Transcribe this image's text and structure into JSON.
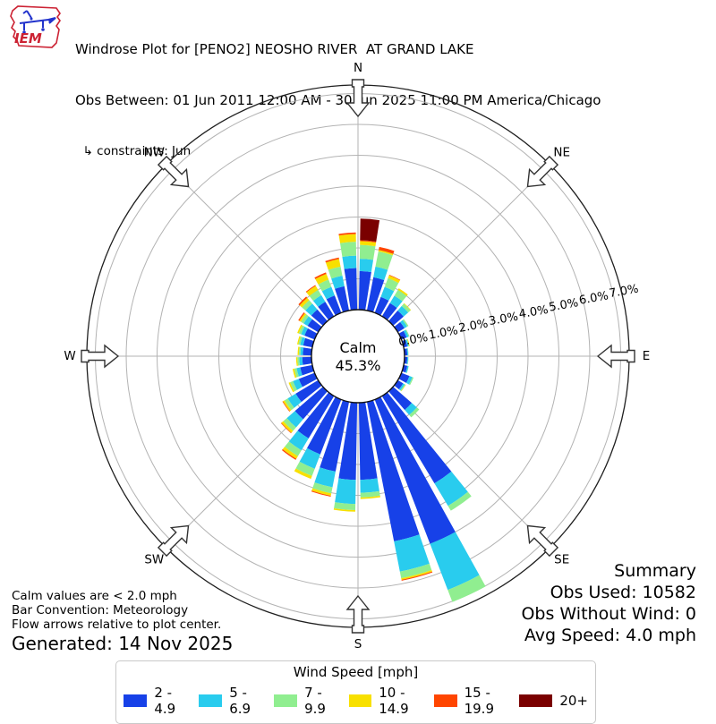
{
  "header": {
    "title": "Windrose Plot for [PENO2] NEOSHO RIVER  AT GRAND LAKE",
    "subtitle": "Obs Between: 01 Jun 2011 12:00 AM - 30 Jun 2025 11:00 PM America/Chicago",
    "constraints": "  ↳ constraints: Jun",
    "logo_text": "IEM"
  },
  "chart_data": {
    "type": "windrose-stacked-polar-bar",
    "title": "Windrose Plot for [PENO2] NEOSHO RIVER  AT GRAND LAKE",
    "calm_label": "Calm",
    "calm_value": "45.3%",
    "compass_labels": [
      "N",
      "NE",
      "E",
      "SE",
      "S",
      "SW",
      "W",
      "NW"
    ],
    "ring_labels": [
      "0.0%",
      "1.0%",
      "2.0%",
      "3.0%",
      "4.0%",
      "5.0%",
      "6.0%",
      "7.0%"
    ],
    "ring_step_pct": 1.0,
    "ring_max_pct": 7.0,
    "bar_width_deg": 8,
    "directions_deg": [
      5,
      15,
      25,
      35,
      45,
      55,
      65,
      75,
      85,
      95,
      105,
      115,
      125,
      135,
      145,
      155,
      165,
      175,
      185,
      195,
      205,
      215,
      225,
      235,
      245,
      255,
      265,
      275,
      285,
      295,
      305,
      315,
      325,
      335,
      345,
      355
    ],
    "series": [
      {
        "name": "2 - 4.9",
        "color": "#1741e8",
        "values": [
          1.25,
          1.1,
          0.55,
          0.5,
          0.45,
          0.25,
          0.18,
          0.12,
          0.09,
          0.09,
          0.12,
          0.28,
          0.2,
          0.8,
          3.3,
          5.0,
          4.6,
          2.5,
          2.5,
          2.3,
          1.9,
          1.6,
          1.2,
          0.85,
          0.55,
          0.4,
          0.3,
          0.28,
          0.3,
          0.35,
          0.4,
          0.5,
          0.55,
          0.6,
          0.8,
          1.35
        ]
      },
      {
        "name": "5 - 6.9",
        "color": "#29ccee",
        "values": [
          0.4,
          0.35,
          0.35,
          0.28,
          0.2,
          0.1,
          0.07,
          0.04,
          0.03,
          0.03,
          0.04,
          0.1,
          0.06,
          0.22,
          0.85,
          1.6,
          1.0,
          0.42,
          0.78,
          0.52,
          0.5,
          0.45,
          0.35,
          0.3,
          0.2,
          0.12,
          0.1,
          0.08,
          0.1,
          0.12,
          0.15,
          0.25,
          0.25,
          0.3,
          0.35,
          0.4
        ]
      },
      {
        "name": "7 - 9.9",
        "color": "#90ee90",
        "values": [
          0.45,
          0.5,
          0.3,
          0.22,
          0.1,
          0.05,
          0.03,
          0.02,
          0.01,
          0.01,
          0.01,
          0.04,
          0.03,
          0.1,
          0.18,
          0.42,
          0.22,
          0.15,
          0.2,
          0.2,
          0.25,
          0.22,
          0.15,
          0.12,
          0.1,
          0.08,
          0.06,
          0.05,
          0.06,
          0.08,
          0.1,
          0.15,
          0.2,
          0.25,
          0.3,
          0.45
        ]
      },
      {
        "name": "10 - 14.9",
        "color": "#f8e000",
        "values": [
          0.12,
          0.05,
          0.1,
          0.06,
          0.02,
          0,
          0,
          0.02,
          0,
          0,
          0,
          0,
          0.01,
          0,
          0,
          0,
          0.05,
          0.05,
          0.05,
          0.08,
          0.1,
          0.1,
          0.08,
          0.06,
          0.05,
          0.05,
          0.04,
          0.04,
          0.04,
          0.05,
          0.06,
          0.1,
          0.15,
          0.2,
          0.25,
          0.25
        ]
      },
      {
        "name": "15 - 19.9",
        "color": "#ff4500",
        "values": [
          0.03,
          0.1,
          0.02,
          0,
          0,
          0,
          0,
          0,
          0,
          0,
          0,
          0,
          0,
          0,
          0,
          0,
          0.03,
          0,
          0,
          0.03,
          0,
          0.04,
          0.02,
          0.02,
          0,
          0,
          0,
          0,
          0,
          0,
          0.04,
          0.05,
          0.03,
          0.05,
          0.05,
          0.05
        ]
      },
      {
        "name": "20+",
        "color": "#7a0000",
        "values": [
          0.7,
          0,
          0,
          0,
          0,
          0,
          0,
          0,
          0,
          0,
          0,
          0,
          0,
          0,
          0,
          0,
          0,
          0,
          0,
          0,
          0,
          0,
          0,
          0,
          0,
          0,
          0,
          0,
          0,
          0,
          0,
          0,
          0,
          0,
          0,
          0
        ]
      }
    ],
    "legend_position": "bottom",
    "grid": true
  },
  "summary": {
    "title": "Summary",
    "lines": [
      "Obs Used: 10582",
      "Obs Without Wind: 0",
      "Avg Speed: 4.0 mph"
    ]
  },
  "footer": {
    "notes": [
      "Calm values are < 2.0 mph",
      "Bar Convention: Meteorology",
      "Flow arrows relative to plot center."
    ],
    "generated": "Generated: 14 Nov 2025"
  },
  "legend": {
    "title": "Wind Speed [mph]",
    "items": [
      {
        "label": "2 - 4.9",
        "color": "#1741e8"
      },
      {
        "label": "5 - 6.9",
        "color": "#29ccee"
      },
      {
        "label": "7 - 9.9",
        "color": "#90ee90"
      },
      {
        "label": "10 - 14.9",
        "color": "#f8e000"
      },
      {
        "label": "15 - 19.9",
        "color": "#ff4500"
      },
      {
        "label": "20+",
        "color": "#7a0000"
      }
    ]
  },
  "colors": {
    "grid": "#b3b3b3",
    "outline": "#1f1f1f",
    "logo_red": "#cc2233",
    "logo_blue": "#2233cc"
  }
}
